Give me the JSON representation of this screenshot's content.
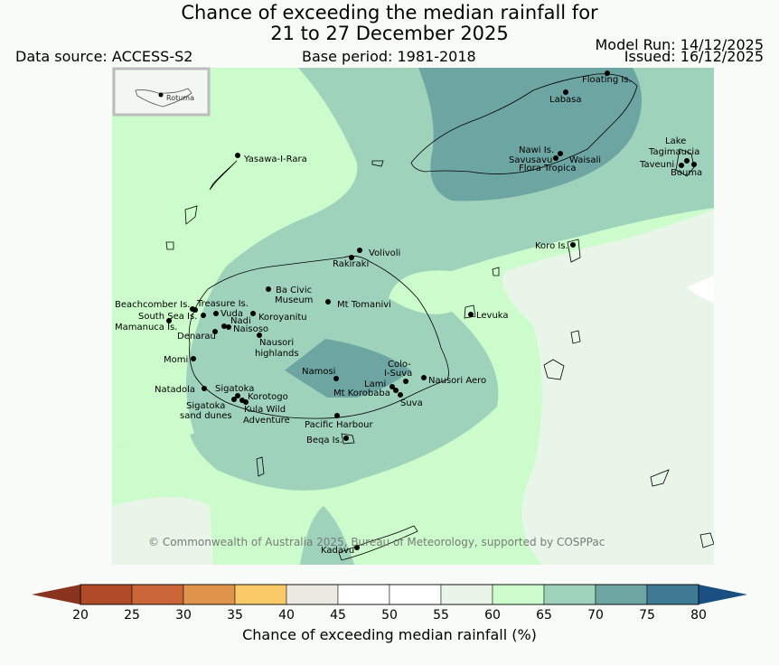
{
  "header": {
    "title_line1": "Chance of exceeding the median rainfall for",
    "title_line2": "21 to 27 December 2025",
    "data_source": "Data source: ACCESS-S2",
    "base_period": "Base period: 1981-2018",
    "model_run": "Model Run: 14/12/2025",
    "issued": "Issued: 16/12/2025"
  },
  "inset": {
    "label": "Rotuma"
  },
  "places": [
    "Floating Is.",
    "Labasa",
    "Nawi Is.",
    "Savusavu",
    "Waisali",
    "Flora Tropica",
    "Lake",
    "Tagimaucia",
    "Taveuni",
    "Bouma",
    "Yasawa-I-Rara",
    "Koro Is.",
    "Volivoli",
    "Rakiraki",
    "Ba Civic",
    "Museum",
    "Mt Tomanivi",
    "Levuka",
    "Beachcomber Is.",
    "Treasure Is.",
    "South Sea Is.",
    "Vuda",
    "Koroyanitu",
    "Nadi",
    "Mamanuca Is.",
    "Naisoso",
    "Denarau",
    "Nausori",
    "highlands",
    "Momi",
    "Namosi",
    "Colo-",
    "I-Suva",
    "Nausori Aero",
    "Lami",
    "Mt Korobaba",
    "Suva",
    "Natadola",
    "Sigatoka",
    "Korotogo",
    "Sigatoka",
    "sand dunes",
    "Kula Wild",
    "Adventure",
    "Pacific Harbour",
    "Beqa Is.",
    "Kadavu"
  ],
  "copyright": "© Commonwealth of Australia 2025, Bureau of Meteorology, supported by COSPPac",
  "colorbar": {
    "ticks": [
      "20",
      "25",
      "30",
      "35",
      "40",
      "45",
      "50",
      "55",
      "60",
      "65",
      "70",
      "75",
      "80"
    ],
    "colors": [
      "#b04a27",
      "#c96538",
      "#e0954d",
      "#f9cb68",
      "#ece9e3",
      "#ffffff",
      "#ffffff",
      "#e9f5e9",
      "#ccfccc",
      "#9fd2bb",
      "#6da5a3",
      "#3e7a94"
    ],
    "under_color": "#8a3420",
    "over_color": "#1a4f82",
    "label": "Chance of exceeding median rainfall (%)"
  }
}
